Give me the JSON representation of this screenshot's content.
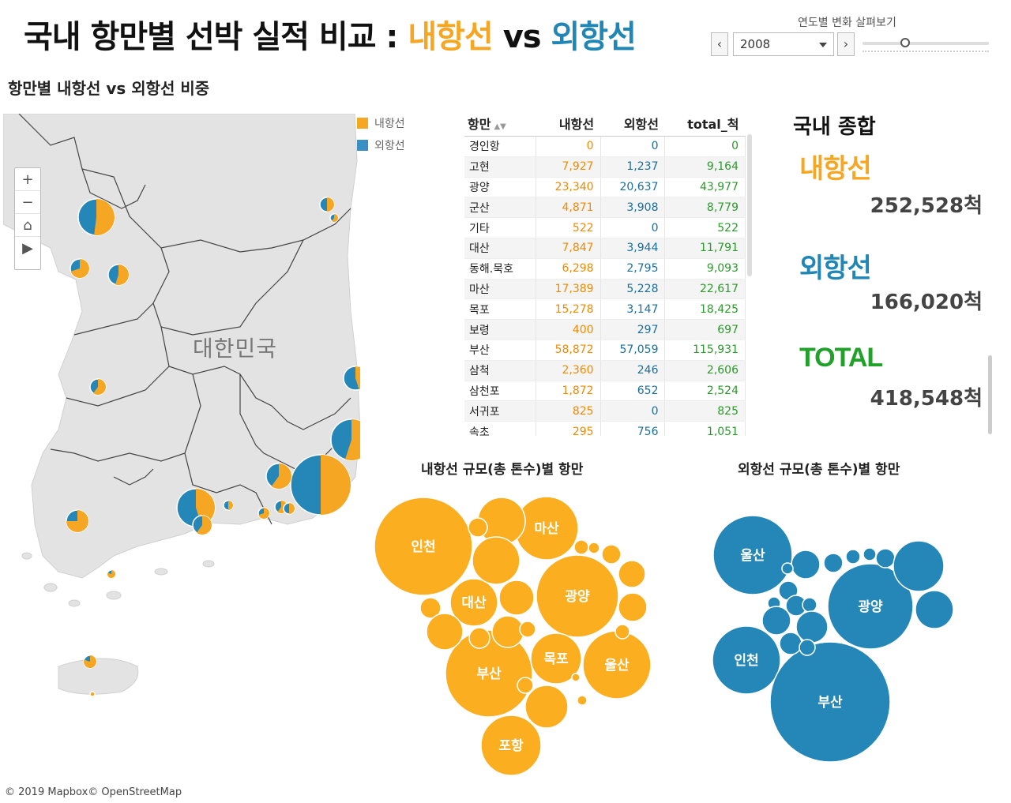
{
  "header": {
    "title_main": "국내 항만별 선박 실적 비교 : ",
    "title_domestic": "내항선",
    "title_vs": " vs ",
    "title_international": "외항선"
  },
  "year_control": {
    "label": "연도별 변화 살펴보기",
    "selected_year": "2008",
    "prev_symbol": "‹",
    "next_symbol": "›"
  },
  "map_section": {
    "title": "항만별 내항선 vs 외항선 비중",
    "country_label": "대한민국",
    "copyright": "© 2019 Mapbox© OpenStreetMap",
    "legend": [
      {
        "label": "내항선",
        "color": "#f5a623"
      },
      {
        "label": "외항선",
        "color": "#3b8fc2"
      }
    ],
    "controls": [
      "+",
      "−",
      "⌂",
      "▶"
    ]
  },
  "table": {
    "headers": {
      "port": "항만",
      "domestic": "내항선",
      "international": "외항선",
      "total": "total_척"
    },
    "rows": [
      {
        "port": "경인항",
        "domestic": "0",
        "international": "0",
        "total": "0"
      },
      {
        "port": "고현",
        "domestic": "7,927",
        "international": "1,237",
        "total": "9,164"
      },
      {
        "port": "광양",
        "domestic": "23,340",
        "international": "20,637",
        "total": "43,977"
      },
      {
        "port": "군산",
        "domestic": "4,871",
        "international": "3,908",
        "total": "8,779"
      },
      {
        "port": "기타",
        "domestic": "522",
        "international": "0",
        "total": "522"
      },
      {
        "port": "대산",
        "domestic": "7,847",
        "international": "3,944",
        "total": "11,791"
      },
      {
        "port": "동해.묵호",
        "domestic": "6,298",
        "international": "2,795",
        "total": "9,093"
      },
      {
        "port": "마산",
        "domestic": "17,389",
        "international": "5,228",
        "total": "22,617"
      },
      {
        "port": "목포",
        "domestic": "15,278",
        "international": "3,147",
        "total": "18,425"
      },
      {
        "port": "보령",
        "domestic": "400",
        "international": "297",
        "total": "697"
      },
      {
        "port": "부산",
        "domestic": "58,872",
        "international": "57,059",
        "total": "115,931"
      },
      {
        "port": "삼척",
        "domestic": "2,360",
        "international": "246",
        "total": "2,606"
      },
      {
        "port": "삼천포",
        "domestic": "1,872",
        "international": "652",
        "total": "2,524"
      },
      {
        "port": "서귀포",
        "domestic": "825",
        "international": "0",
        "total": "825"
      },
      {
        "port": "속초",
        "domestic": "295",
        "international": "756",
        "total": "1,051"
      }
    ]
  },
  "summary": {
    "title": "국내 종합",
    "domestic_label": "내항선",
    "domestic_value": "252,528척",
    "international_label": "외항선",
    "international_value": "166,020척",
    "total_label": "TOTAL",
    "total_value": "418,548척",
    "domestic_color": "#f5a623",
    "international_color": "#1f86b6",
    "total_color": "#22a12a"
  },
  "bubbles_domestic": {
    "title": "내항선 규모(총 톤수)별 항만",
    "color": "#fbae1f",
    "labels": [
      "인천",
      "마산",
      "광양",
      "대산",
      "부산",
      "목포",
      "울산",
      "포항"
    ]
  },
  "bubbles_international": {
    "title": "외항선 규모(총 톤수)별 항만",
    "color": "#2487b8",
    "labels": [
      "울산",
      "광양",
      "인천",
      "부산"
    ]
  }
}
